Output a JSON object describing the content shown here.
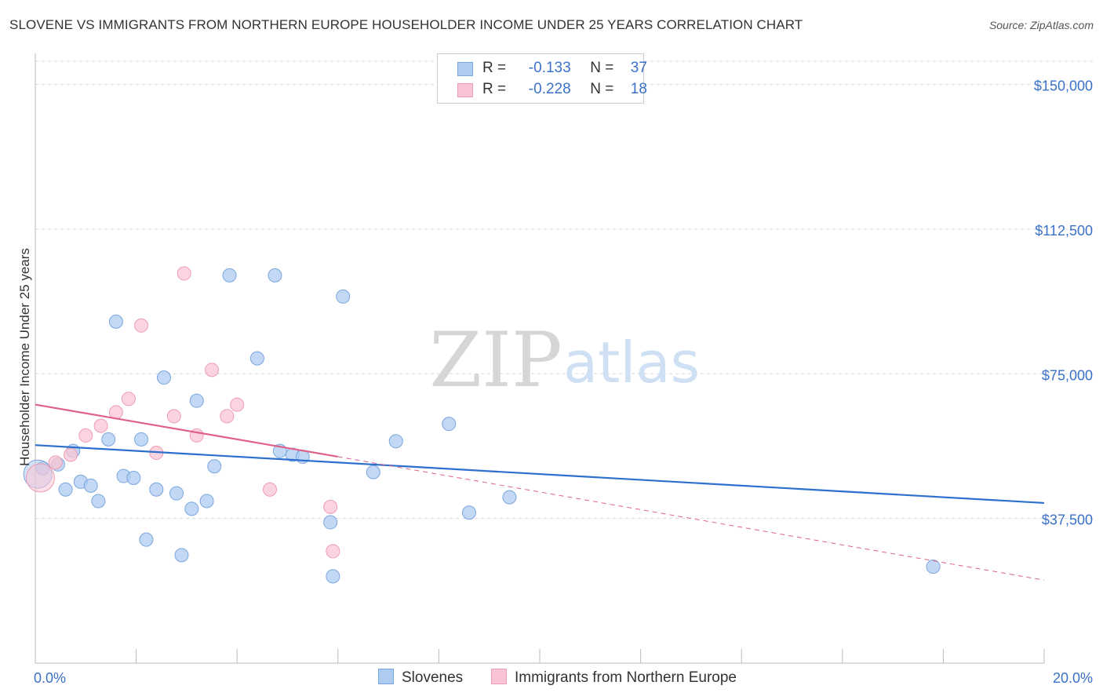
{
  "title": "SLOVENE VS IMMIGRANTS FROM NORTHERN EUROPE HOUSEHOLDER INCOME UNDER 25 YEARS CORRELATION CHART",
  "source": "Source: ZipAtlas.com",
  "watermark": {
    "zip": "ZIP",
    "atlas": "atlas"
  },
  "legend": {
    "r_label": "R =",
    "n_label": "N =",
    "series": [
      {
        "r": "-0.133",
        "n": "37"
      },
      {
        "r": "-0.228",
        "n": "18"
      }
    ]
  },
  "colors": {
    "slovenes_fill": "#aecbf0",
    "slovenes_stroke": "#7aa6de",
    "slovenes_line": "#2c6fce",
    "immigrants_fill": "#f9c5d4",
    "immigrants_stroke": "#ee9db6",
    "immigrants_line": "#e0608a",
    "axis_label": "#3b72c9"
  },
  "chart_data": {
    "type": "scatter",
    "title": "SLOVENE VS IMMIGRANTS FROM NORTHERN EUROPE HOUSEHOLDER INCOME UNDER 25 YEARS CORRELATION CHART",
    "xlabel": "",
    "ylabel": "Householder Income Under 25 years",
    "xlim": [
      0,
      20
    ],
    "ylim": [
      0,
      156000
    ],
    "x_tick_labels": [
      "0.0%",
      "20.0%"
    ],
    "y_ticks": [
      37500,
      75000,
      112500,
      150000
    ],
    "y_tick_labels": [
      "$37,500",
      "$75,000",
      "$112,500",
      "$150,000"
    ],
    "series": [
      {
        "name": "Slovenes",
        "points": [
          [
            0.15,
            50500
          ],
          [
            0.45,
            51500
          ],
          [
            0.6,
            45000
          ],
          [
            0.75,
            55000
          ],
          [
            0.9,
            47000
          ],
          [
            1.1,
            46000
          ],
          [
            1.25,
            42000
          ],
          [
            1.45,
            58000
          ],
          [
            1.6,
            88500
          ],
          [
            1.75,
            48500
          ],
          [
            1.95,
            48000
          ],
          [
            2.1,
            58000
          ],
          [
            2.2,
            32000
          ],
          [
            2.4,
            45000
          ],
          [
            2.55,
            74000
          ],
          [
            2.8,
            44000
          ],
          [
            2.9,
            28000
          ],
          [
            3.1,
            40000
          ],
          [
            3.2,
            68000
          ],
          [
            3.4,
            42000
          ],
          [
            3.55,
            51000
          ],
          [
            3.85,
            100500
          ],
          [
            4.4,
            79000
          ],
          [
            4.75,
            100500
          ],
          [
            4.85,
            55000
          ],
          [
            5.1,
            54000
          ],
          [
            5.3,
            53500
          ],
          [
            5.85,
            36500
          ],
          [
            5.9,
            22500
          ],
          [
            6.1,
            95000
          ],
          [
            6.7,
            49500
          ],
          [
            7.15,
            57500
          ],
          [
            8.2,
            62000
          ],
          [
            8.6,
            39000
          ],
          [
            9.4,
            43000
          ],
          [
            17.8,
            25000
          ],
          [
            0.05,
            49000
          ]
        ]
      },
      {
        "name": "Immigrants from Northern Europe",
        "points": [
          [
            0.1,
            48000
          ],
          [
            0.4,
            52000
          ],
          [
            0.7,
            54000
          ],
          [
            1.0,
            59000
          ],
          [
            1.3,
            61500
          ],
          [
            1.6,
            65000
          ],
          [
            1.85,
            68500
          ],
          [
            2.1,
            87500
          ],
          [
            2.4,
            54500
          ],
          [
            2.75,
            64000
          ],
          [
            2.95,
            101000
          ],
          [
            3.2,
            59000
          ],
          [
            3.5,
            76000
          ],
          [
            3.8,
            64000
          ],
          [
            4.0,
            67000
          ],
          [
            4.65,
            45000
          ],
          [
            5.85,
            40500
          ],
          [
            5.9,
            29000
          ]
        ]
      }
    ],
    "trendlines": [
      {
        "series": "Slovenes",
        "x": [
          0,
          20
        ],
        "y": [
          56500,
          41500
        ],
        "style": "solid"
      },
      {
        "series": "Immigrants from Northern Europe",
        "x": [
          0,
          6.0
        ],
        "y": [
          67000,
          53500
        ],
        "style": "solid"
      },
      {
        "series": "Immigrants from Northern Europe",
        "x": [
          6.0,
          20
        ],
        "y": [
          53500,
          21500
        ],
        "style": "dashed"
      }
    ],
    "legend_items": [
      "Slovenes",
      "Immigrants from Northern Europe"
    ]
  }
}
